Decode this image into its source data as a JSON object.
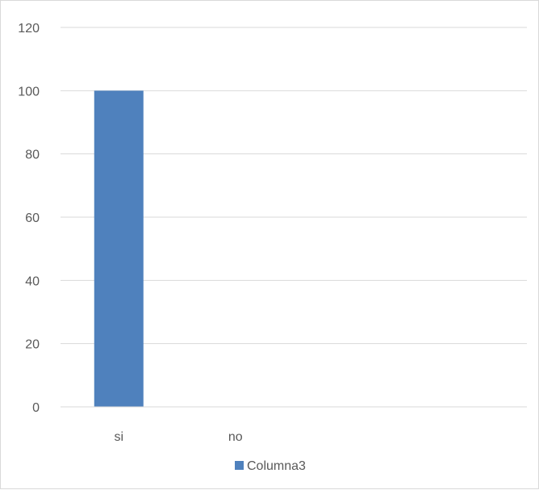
{
  "chart_data": {
    "type": "bar",
    "categories": [
      "si",
      "no",
      "",
      ""
    ],
    "series": [
      {
        "name": "Columna3",
        "values": [
          100,
          0,
          null,
          null
        ],
        "color": "#4f81bd"
      }
    ],
    "ylim": [
      0,
      120
    ],
    "yticks": [
      "0",
      "20",
      "40",
      "60",
      "80",
      "100",
      "120"
    ],
    "grid": true,
    "legend_position": "bottom"
  }
}
